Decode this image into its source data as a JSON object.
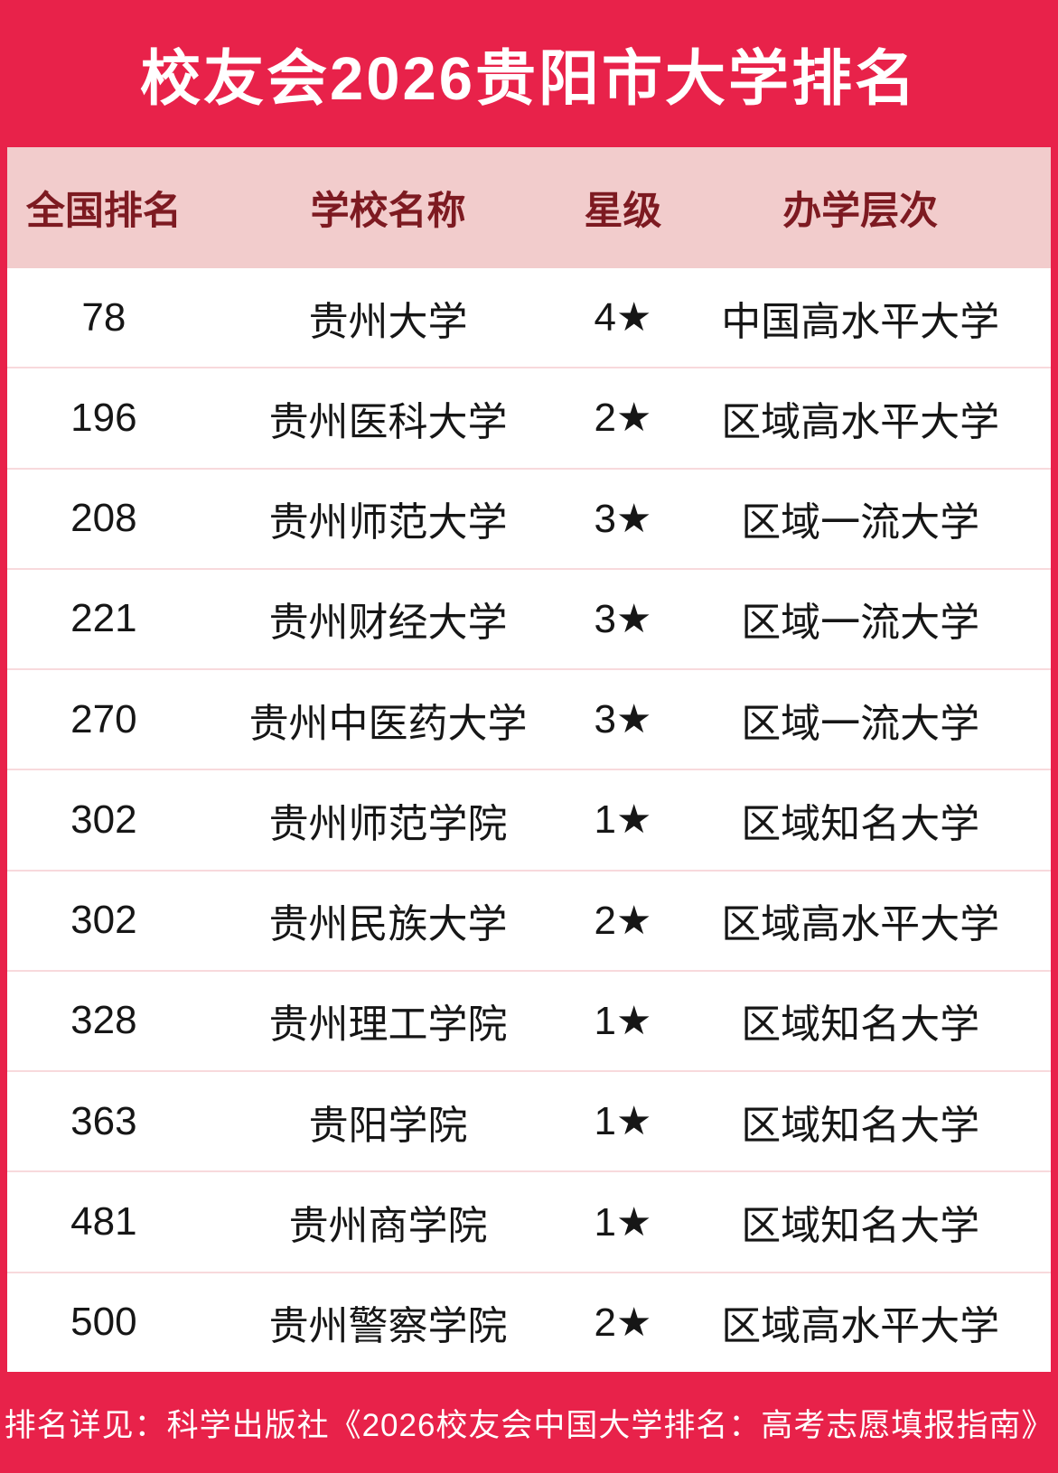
{
  "title": "校友会2026贵阳市大学排名",
  "colors": {
    "frame_red": "#E8224A",
    "header_pink": "#F2CCCC",
    "header_text_dark_red": "#7D1A21",
    "body_text": "#161616",
    "divider_pink": "#F8D9DC",
    "title_text": "#FFFFFF"
  },
  "table": {
    "columns": [
      "全国排名",
      "学校名称",
      "星级",
      "办学层次"
    ],
    "rows": [
      {
        "rank": "78",
        "school": "贵州大学",
        "stars": "4★",
        "level": "中国高水平大学"
      },
      {
        "rank": "196",
        "school": "贵州医科大学",
        "stars": "2★",
        "level": "区域高水平大学"
      },
      {
        "rank": "208",
        "school": "贵州师范大学",
        "stars": "3★",
        "level": "区域一流大学"
      },
      {
        "rank": "221",
        "school": "贵州财经大学",
        "stars": "3★",
        "level": "区域一流大学"
      },
      {
        "rank": "270",
        "school": "贵州中医药大学",
        "stars": "3★",
        "level": "区域一流大学"
      },
      {
        "rank": "302",
        "school": "贵州师范学院",
        "stars": "1★",
        "level": "区域知名大学"
      },
      {
        "rank": "302",
        "school": "贵州民族大学",
        "stars": "2★",
        "level": "区域高水平大学"
      },
      {
        "rank": "328",
        "school": "贵州理工学院",
        "stars": "1★",
        "level": "区域知名大学"
      },
      {
        "rank": "363",
        "school": "贵阳学院",
        "stars": "1★",
        "level": "区域知名大学"
      },
      {
        "rank": "481",
        "school": "贵州商学院",
        "stars": "1★",
        "level": "区域知名大学"
      },
      {
        "rank": "500",
        "school": "贵州警察学院",
        "stars": "2★",
        "level": "区域高水平大学"
      }
    ]
  },
  "footer": {
    "note": "排名详见：科学出版社《2026校友会中国大学排名：高考志愿填报指南》"
  },
  "chart_data": {
    "type": "table",
    "title": "校友会2026贵阳市大学排名",
    "columns": [
      "全国排名",
      "学校名称",
      "星级",
      "办学层次"
    ],
    "rows": [
      [
        "78",
        "贵州大学",
        "4★",
        "中国高水平大学"
      ],
      [
        "196",
        "贵州医科大学",
        "2★",
        "区域高水平大学"
      ],
      [
        "208",
        "贵州师范大学",
        "3★",
        "区域一流大学"
      ],
      [
        "221",
        "贵州财经大学",
        "3★",
        "区域一流大学"
      ],
      [
        "270",
        "贵州中医药大学",
        "3★",
        "区域一流大学"
      ],
      [
        "302",
        "贵州师范学院",
        "1★",
        "区域知名大学"
      ],
      [
        "302",
        "贵州民族大学",
        "2★",
        "区域高水平大学"
      ],
      [
        "328",
        "贵州理工学院",
        "1★",
        "区域知名大学"
      ],
      [
        "363",
        "贵阳学院",
        "1★",
        "区域知名大学"
      ],
      [
        "481",
        "贵州商学院",
        "1★",
        "区域知名大学"
      ],
      [
        "500",
        "贵州警察学院",
        "2★",
        "区域高水平大学"
      ]
    ],
    "footnote": "排名详见：科学出版社《2026校友会中国大学排名：高考志愿填报指南》"
  }
}
